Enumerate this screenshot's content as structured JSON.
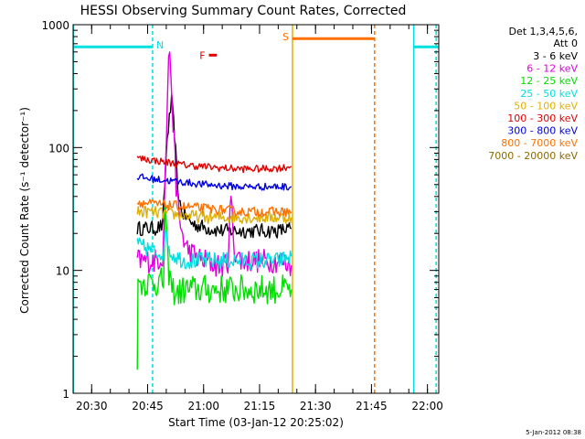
{
  "chart_data": {
    "type": "line",
    "title": "HESSI Observing Summary Count Rates, Corrected",
    "xlabel": "Start Time (03-Jan-12 20:25:02)",
    "ylabel": "Corrected Count Rate (s⁻¹ detector⁻¹)",
    "x_unit": "minutes after 20:25:02 on 03-Jan-12",
    "xlim": [
      0,
      98
    ],
    "ylim": [
      1,
      1000
    ],
    "yscale": "log",
    "x_ticks": [
      {
        "value": 4.97,
        "label": "20:30"
      },
      {
        "value": 19.97,
        "label": "20:45"
      },
      {
        "value": 34.97,
        "label": "21:00"
      },
      {
        "value": 49.97,
        "label": "21:15"
      },
      {
        "value": 64.97,
        "label": "21:30"
      },
      {
        "value": 79.97,
        "label": "21:45"
      },
      {
        "value": 94.97,
        "label": "22:00"
      }
    ],
    "y_ticks": [
      {
        "value": 1,
        "label": "1"
      },
      {
        "value": 10,
        "label": "10"
      },
      {
        "value": 100,
        "label": "100"
      },
      {
        "value": 1000,
        "label": "1000"
      }
    ],
    "legend": {
      "title_line1": "Det 1,3,4,5,6,",
      "title_line2": "Att 0",
      "position": "right"
    },
    "series": [
      {
        "name": "3 - 6 keV",
        "color": "#000000",
        "x": [
          17.2,
          20,
          22,
          24,
          25.2,
          26.4,
          27.2,
          28,
          29,
          32,
          36,
          40,
          45,
          50,
          55,
          58.5
        ],
        "y": [
          22,
          22,
          22,
          23,
          120,
          240,
          130,
          48,
          30,
          24,
          22,
          21,
          21,
          21,
          21,
          22
        ]
      },
      {
        "name": "6 - 12 keV",
        "color": "#e000e0",
        "x": [
          17.2,
          20,
          22,
          24,
          25.0,
          25.6,
          26.2,
          26.8,
          27.6,
          28.5,
          30,
          31.5,
          33,
          34.5,
          36,
          38,
          40,
          41.5,
          42.3,
          43.2,
          45,
          50,
          55,
          58.5
        ],
        "y": [
          12,
          12,
          12,
          13,
          120,
          600,
          420,
          160,
          50,
          25,
          16,
          14,
          13,
          12,
          12,
          11,
          11,
          12,
          40,
          15,
          12,
          12,
          12,
          11
        ]
      },
      {
        "name": "12 - 25 keV",
        "color": "#00e000",
        "x": [
          17.2,
          17.4,
          17.8,
          19,
          21,
          23,
          24.2,
          24.7,
          25.4,
          26.5,
          28,
          30,
          35,
          40,
          45,
          50,
          55,
          58.5
        ],
        "y": [
          2,
          7,
          8,
          8,
          8,
          8,
          8,
          30,
          11,
          7,
          6.5,
          7,
          7,
          7,
          7,
          7,
          7,
          7
        ]
      },
      {
        "name": "25 - 50 keV",
        "color": "#00e0e0",
        "x": [
          17.2,
          20,
          22,
          24,
          25,
          26,
          27.5,
          30,
          35,
          40,
          45,
          50,
          55,
          58.5
        ],
        "y": [
          16,
          15,
          14,
          14,
          20,
          14,
          13,
          12,
          12,
          12,
          12,
          12,
          12,
          13
        ]
      },
      {
        "name": "50 - 100 keV",
        "color": "#e0b000",
        "x": [
          17.2,
          20,
          25,
          30,
          35,
          40,
          45,
          50,
          55,
          58.5
        ],
        "y": [
          30,
          30,
          29,
          28,
          27,
          27,
          27,
          27,
          27,
          27
        ]
      },
      {
        "name": "100 - 300 keV",
        "color": "#e00000",
        "x": [
          17.2,
          20,
          25,
          30,
          35,
          40,
          45,
          50,
          55,
          58.5
        ],
        "y": [
          82,
          80,
          76,
          72,
          70,
          68,
          67,
          67,
          68,
          70
        ]
      },
      {
        "name": "300 - 800 keV",
        "color": "#0000e0",
        "x": [
          17.2,
          20,
          25,
          30,
          35,
          40,
          45,
          50,
          55,
          58.5
        ],
        "y": [
          58,
          56,
          54,
          52,
          50,
          49,
          48,
          48,
          48,
          48
        ]
      },
      {
        "name": "800 - 7000 keV",
        "color": "#ff7000",
        "x": [
          17.2,
          20,
          25,
          30,
          35,
          40,
          45,
          50,
          55,
          58.5
        ],
        "y": [
          36,
          35,
          34,
          33,
          32,
          31,
          30,
          30,
          30,
          30
        ]
      },
      {
        "name": "7000 - 20000 keV",
        "color": "#8b6b00",
        "x": [],
        "y": []
      }
    ],
    "flag_bars": [
      {
        "label": "N",
        "color": "#00e0e0",
        "y": 660,
        "segments": [
          [
            0,
            21.3
          ],
          [
            91.3,
            98
          ]
        ]
      },
      {
        "label": "S",
        "color": "#ff7000",
        "y": 770,
        "segments": [
          [
            58.8,
            80.8
          ]
        ]
      },
      {
        "label": "F",
        "color": "#e00000",
        "y": 565,
        "segments": [
          [
            36.4,
            38.5
          ]
        ]
      }
    ],
    "markers": [
      {
        "x": 0.1,
        "color": "#00e0e0",
        "style": "solid"
      },
      {
        "x": 21.3,
        "color": "#00e0e0",
        "style": "dashed"
      },
      {
        "x": 58.8,
        "color": "#e0b000",
        "style": "solid"
      },
      {
        "x": 80.8,
        "color": "#ff7000",
        "style": "dashed"
      },
      {
        "x": 91.3,
        "color": "#00e0e0",
        "style": "solid"
      },
      {
        "x": 97.3,
        "color": "#00e0e0",
        "style": "dashed"
      }
    ]
  },
  "footer": {
    "date_stamp": "5-Jan-2012 08:38"
  }
}
